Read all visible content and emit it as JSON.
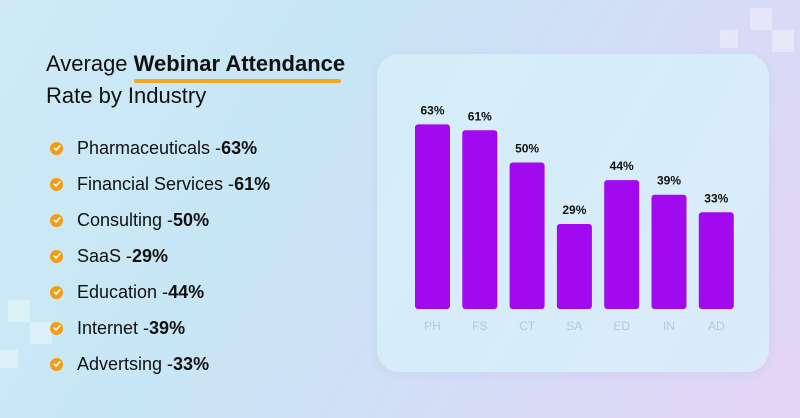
{
  "title": {
    "pre": "Average ",
    "highlight": "Webinar Attendance",
    "line2": "Rate by Industry"
  },
  "list": [
    {
      "label": "Pharmaceuticals - ",
      "value": "63%"
    },
    {
      "label": "Financial Services - ",
      "value": "61%"
    },
    {
      "label": "Consulting - ",
      "value": "50%"
    },
    {
      "label": "SaaS - ",
      "value": "29%"
    },
    {
      "label": "Education - ",
      "value": "44%"
    },
    {
      "label": "Internet - ",
      "value": "39%"
    },
    {
      "label": "Advertsing - ",
      "value": "33%"
    }
  ],
  "colors": {
    "bar": "#a10aef",
    "check": "#f39c12",
    "underline": "#f5a623"
  },
  "chart_data": {
    "type": "bar",
    "title": "",
    "xlabel": "",
    "ylabel": "",
    "categories": [
      "PH",
      "FS",
      "CT",
      "SA",
      "ED",
      "IN",
      "AD"
    ],
    "values": [
      63,
      61,
      50,
      29,
      44,
      39,
      33
    ],
    "data_labels": [
      "63%",
      "61%",
      "50%",
      "29%",
      "44%",
      "39%",
      "33%"
    ],
    "ylim": [
      0,
      70
    ],
    "grid": false,
    "legend": "none"
  }
}
